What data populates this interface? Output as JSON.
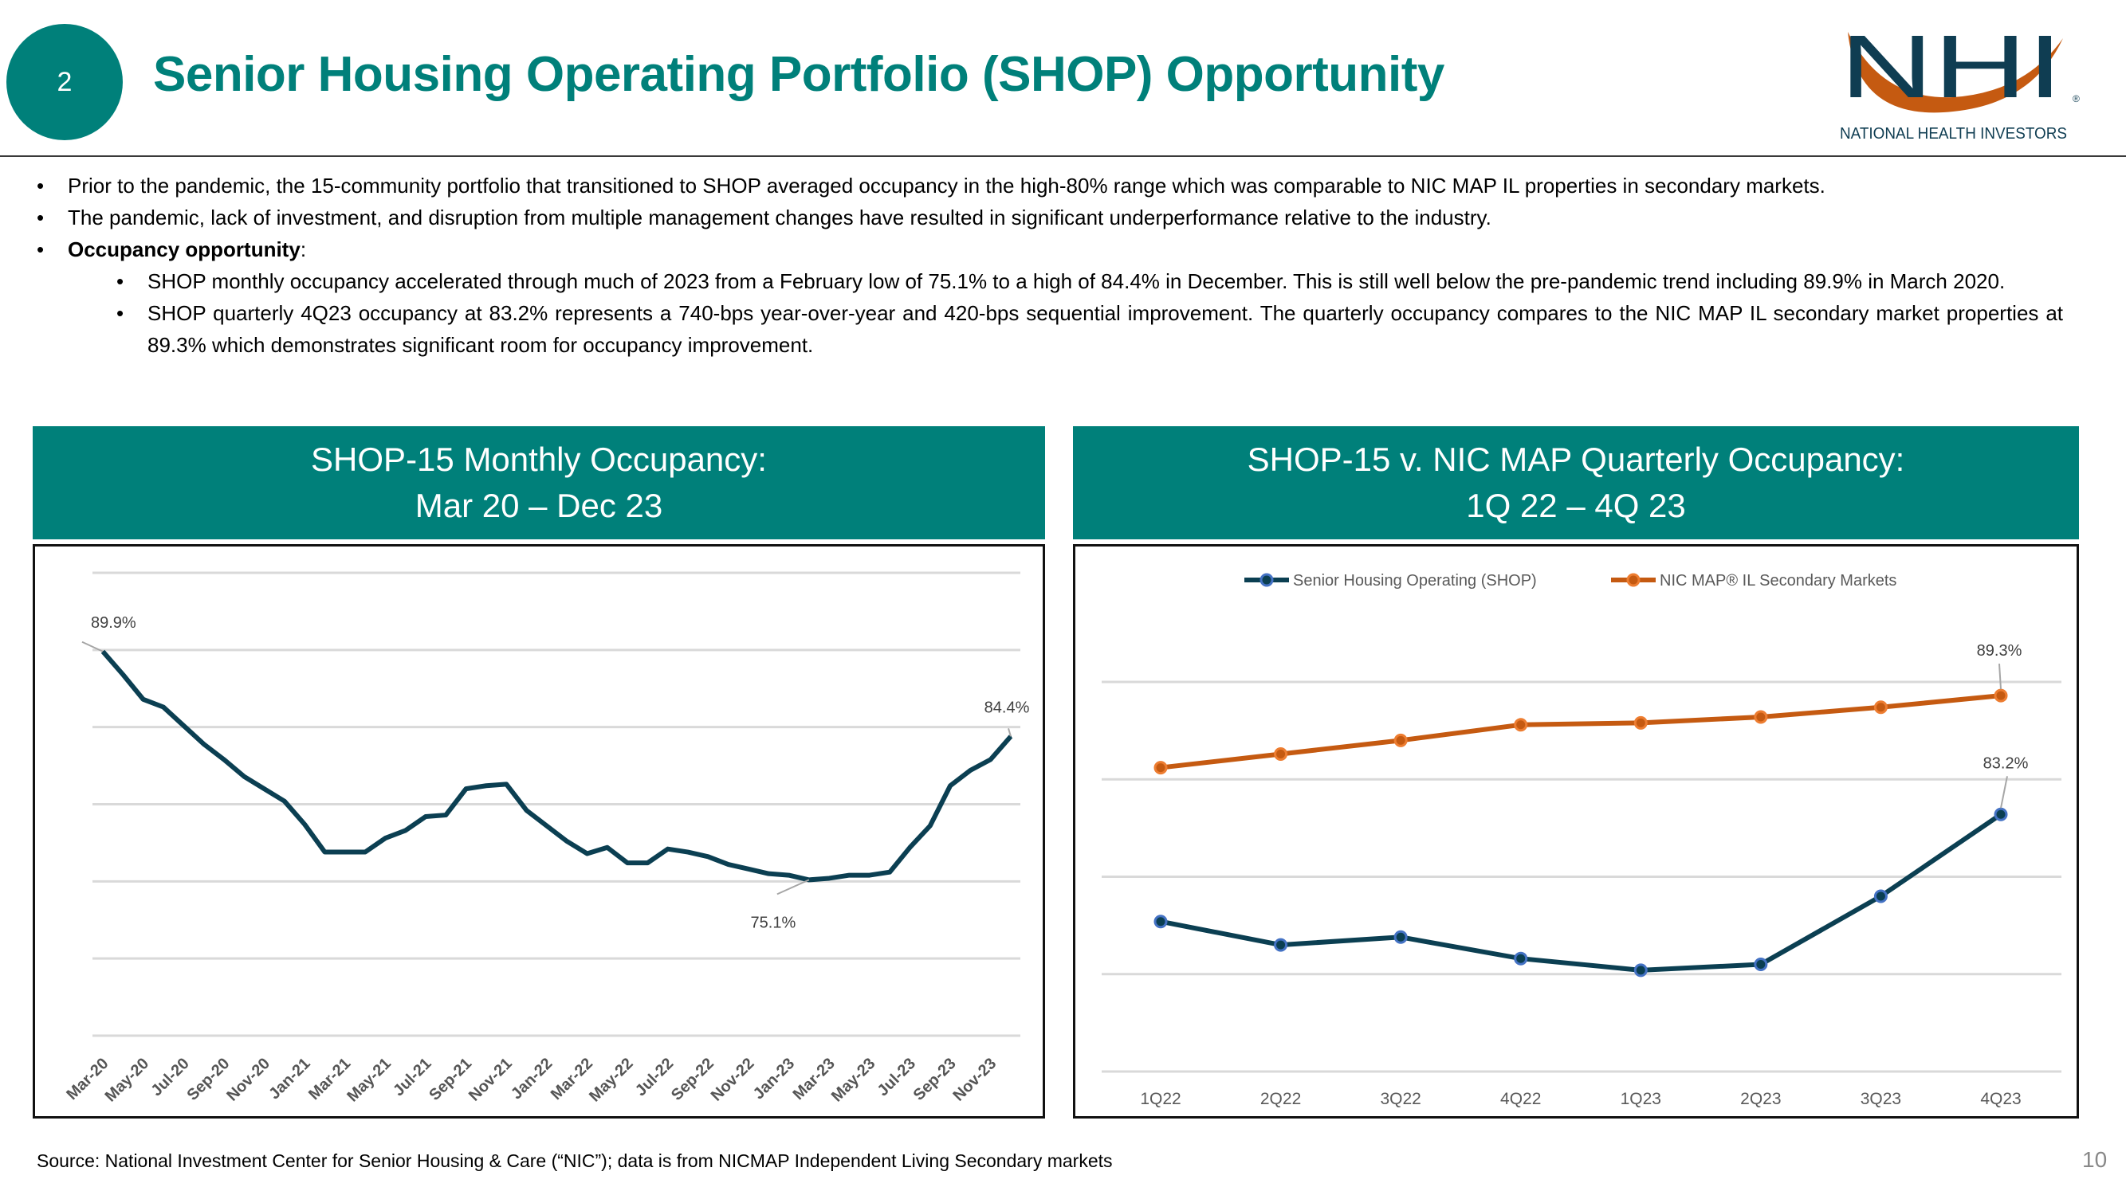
{
  "header": {
    "section_number": "2",
    "title": "Senior Housing Operating Portfolio (SHOP) Opportunity",
    "logo": {
      "letters": "NHI",
      "tagline": "NATIONAL HEALTH INVESTORS",
      "mark": "®"
    }
  },
  "bullets": [
    {
      "level": 1,
      "text": "Prior to the pandemic, the 15-community portfolio that transitioned to SHOP averaged occupancy in the high-80% range which was comparable to NIC MAP IL properties in secondary markets."
    },
    {
      "level": 1,
      "text": "The pandemic, lack of investment, and disruption from multiple management changes have resulted in significant underperformance relative to the industry."
    },
    {
      "level": 1,
      "bold": "Occupancy opportunity",
      "text": ":"
    },
    {
      "level": 2,
      "text": "SHOP monthly occupancy accelerated through much of 2023 from a February low of 75.1% to a high of 84.4% in December.  This is still well below the pre-pandemic trend including 89.9% in March 2020."
    },
    {
      "level": 2,
      "text": "SHOP quarterly 4Q23 occupancy at 83.2% represents a 740-bps year-over-year and 420-bps sequential improvement.  The quarterly occupancy compares to the NIC MAP IL secondary market properties at 89.3% which demonstrates significant room for occupancy improvement."
    }
  ],
  "bullet_glyph": "•",
  "panels": {
    "left": {
      "title_line1": "SHOP-15 Monthly Occupancy:",
      "title_line2": "Mar 20 – Dec 23"
    },
    "right": {
      "title_line1": "SHOP-15 v. NIC MAP Quarterly Occupancy:",
      "title_line2": "1Q 22 – 4Q 23"
    }
  },
  "colors": {
    "teal": "#00807A",
    "shop_line": "#0B3F52",
    "shop_marker": "#4472C4",
    "nic_line": "#C55A11",
    "nic_marker": "#ED7D31",
    "grid": "#D9D9D9"
  },
  "chart_data": [
    {
      "type": "line",
      "ylim": [
        65,
        95
      ],
      "grid": true,
      "gridlines": [
        65,
        70,
        75,
        80,
        85,
        90,
        95
      ],
      "x": [
        "Mar-20",
        "Apr-20",
        "May-20",
        "Jun-20",
        "Jul-20",
        "Aug-20",
        "Sep-20",
        "Oct-20",
        "Nov-20",
        "Dec-20",
        "Jan-21",
        "Feb-21",
        "Mar-21",
        "Apr-21",
        "May-21",
        "Jun-21",
        "Jul-21",
        "Aug-21",
        "Sep-21",
        "Oct-21",
        "Nov-21",
        "Dec-21",
        "Jan-22",
        "Feb-22",
        "Mar-22",
        "Apr-22",
        "May-22",
        "Jun-22",
        "Jul-22",
        "Aug-22",
        "Sep-22",
        "Oct-22",
        "Nov-22",
        "Dec-22",
        "Jan-23",
        "Feb-23",
        "Mar-23",
        "Apr-23",
        "May-23",
        "Jun-23",
        "Jul-23",
        "Aug-23",
        "Sep-23",
        "Oct-23",
        "Nov-23",
        "Dec-23"
      ],
      "tick_labels": [
        "Mar-20",
        "May-20",
        "Jul-20",
        "Sep-20",
        "Nov-20",
        "Jan-21",
        "Mar-21",
        "May-21",
        "Jul-21",
        "Sep-21",
        "Nov-21",
        "Jan-22",
        "Mar-22",
        "May-22",
        "Jul-22",
        "Sep-22",
        "Nov-22",
        "Jan-23",
        "Mar-23",
        "May-23",
        "Jul-23",
        "Sep-23",
        "Nov-23"
      ],
      "series": [
        {
          "values": [
            89.9,
            88.4,
            86.8,
            86.3,
            85.1,
            83.9,
            82.9,
            81.8,
            81.0,
            80.2,
            78.7,
            76.9,
            76.9,
            76.9,
            77.8,
            78.3,
            79.2,
            79.3,
            81.0,
            81.2,
            81.3,
            79.6,
            78.6,
            77.6,
            76.8,
            77.2,
            76.2,
            76.2,
            77.1,
            76.9,
            76.6,
            76.1,
            75.8,
            75.5,
            75.4,
            75.1,
            75.2,
            75.4,
            75.4,
            75.6,
            77.2,
            78.6,
            81.2,
            82.2,
            82.9,
            84.4
          ]
        }
      ],
      "data_labels": [
        {
          "x": "Mar-20",
          "text": "89.9%"
        },
        {
          "x": "Feb-23",
          "text": "75.1%"
        },
        {
          "x": "Dec-23",
          "text": "84.4%"
        }
      ]
    },
    {
      "type": "line",
      "ylim": [
        70,
        90
      ],
      "grid": true,
      "gridlines": [
        70,
        75,
        80,
        85,
        90
      ],
      "legend_position": "top",
      "categories": [
        "1Q22",
        "2Q22",
        "3Q22",
        "4Q22",
        "1Q23",
        "2Q23",
        "3Q23",
        "4Q23"
      ],
      "series": [
        {
          "name": "Senior Housing Operating (SHOP)",
          "values": [
            77.7,
            76.5,
            76.9,
            75.8,
            75.2,
            75.5,
            79.0,
            83.2
          ],
          "data_label": "83.2%"
        },
        {
          "name": "NIC MAP® IL Secondary Markets",
          "values": [
            85.6,
            86.3,
            87.0,
            87.8,
            87.9,
            88.2,
            88.7,
            89.3
          ],
          "data_label": "89.3%"
        }
      ]
    }
  ],
  "footer": {
    "source": "Source:  National Investment Center for Senior Housing & Care (“NIC”); data is from NICMAP Independent Living Secondary markets",
    "page_number": "10"
  }
}
